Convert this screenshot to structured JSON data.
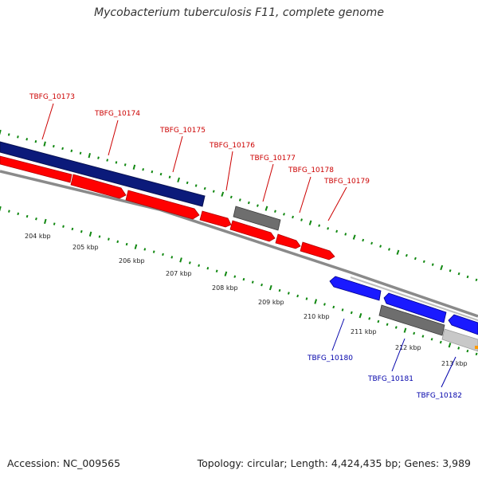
{
  "map": {
    "title": "Mycobacterium tuberculosis F11, complete genome",
    "accession": "Accession: NC_009565",
    "topology": "Topology: circular; Length: 4,424,435 bp; Genes: 3,989"
  },
  "colors": {
    "forward_cds": "#ff0000",
    "reverse_cds": "#0000ee",
    "dark_navy_feature": "#0b1a7a",
    "other_feature": "#666666",
    "light_feature": "#c8c8c8",
    "backbone": "#888888",
    "ticks": "#118811",
    "forward_label": "#cc0000",
    "reverse_label": "#0000aa"
  },
  "scale_labels": [
    "204 kbp",
    "205 kbp",
    "206 kbp",
    "207 kbp",
    "208 kbp",
    "209 kbp",
    "210 kbp",
    "211 kbp",
    "212 kbp",
    "213 kbp"
  ],
  "forward_gene_labels": [
    "TBFG_10173",
    "TBFG_10174",
    "TBFG_10175",
    "TBFG_10176",
    "TBFG_10177",
    "TBFG_10178",
    "TBFG_10179"
  ],
  "reverse_gene_labels": [
    "TBFG_10180",
    "TBFG_10181",
    "TBFG_10182"
  ]
}
